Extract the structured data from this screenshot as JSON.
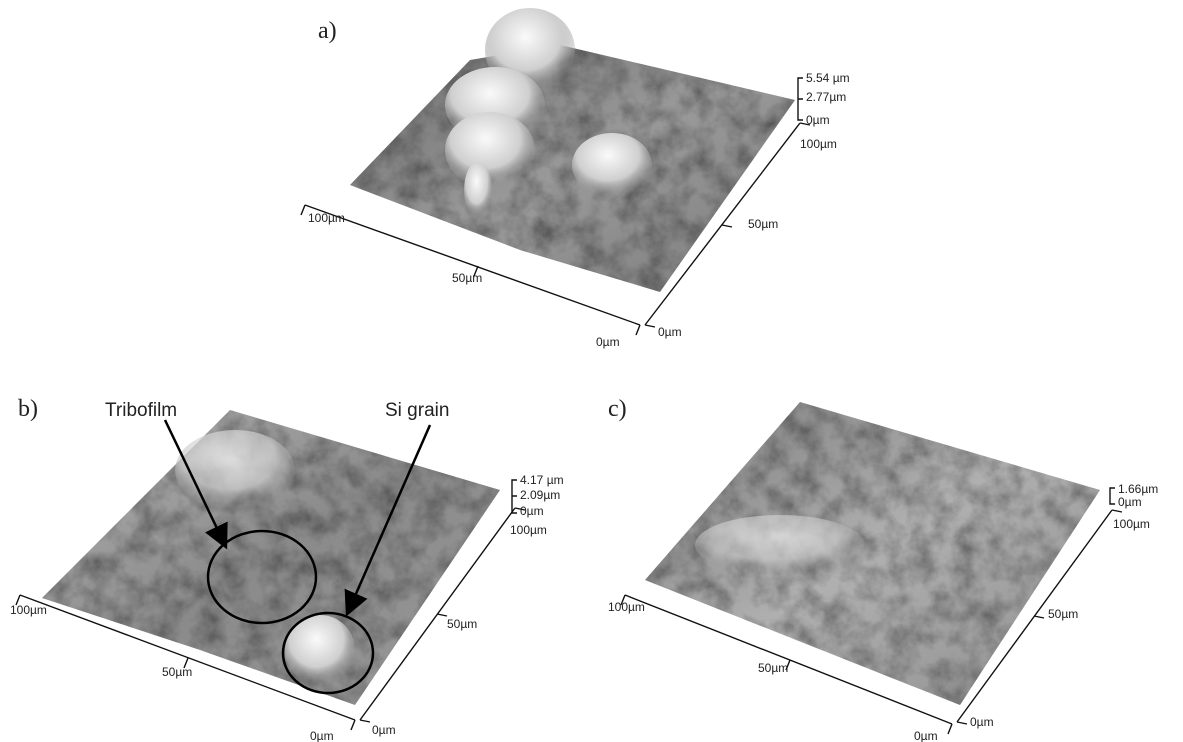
{
  "panels": [
    {
      "label": "a)",
      "z_scale": [
        "5.54 µm",
        "2.77µm",
        "0µm"
      ],
      "x_axis": [
        "100µm",
        "50µm",
        "0µm"
      ],
      "y_axis": [
        "0µm",
        "50µm",
        "100µm"
      ]
    },
    {
      "label": "b)",
      "z_scale": [
        "4.17 µm",
        "2.09µm",
        "0µm"
      ],
      "x_axis": [
        "100µm",
        "50µm",
        "0µm"
      ],
      "y_axis": [
        "0µm",
        "50µm",
        "100µm"
      ]
    },
    {
      "label": "c)",
      "z_scale": [
        "1.66µm",
        "0µm"
      ],
      "x_axis": [
        "100µm",
        "50µm",
        "0µm"
      ],
      "y_axis": [
        "0µm",
        "50µm",
        "100µm"
      ]
    }
  ],
  "annotations": [
    "Tribofilm",
    "Si grain"
  ]
}
